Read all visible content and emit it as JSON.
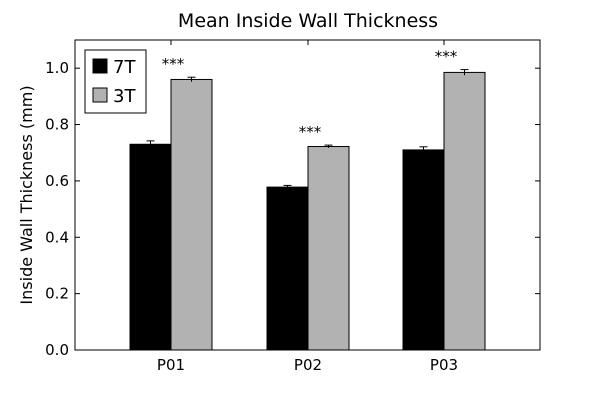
{
  "chart_data": {
    "type": "bar",
    "title": "Mean Inside Wall Thickness",
    "xlabel": "",
    "ylabel": "Inside Wall Thickness (mm)",
    "ylim": [
      0,
      1.1
    ],
    "yticks": [
      "0.0",
      "0.2",
      "0.4",
      "0.6",
      "0.8",
      "1.0"
    ],
    "ytick_values": [
      0,
      0.2,
      0.4,
      0.6,
      0.8,
      1.0
    ],
    "categories": [
      "P01",
      "P02",
      "P03"
    ],
    "series": [
      {
        "name": "7T",
        "color": "#000000",
        "values": [
          0.73,
          0.578,
          0.71
        ],
        "errors": [
          0.012,
          0.006,
          0.011
        ]
      },
      {
        "name": "3T",
        "color": "#b2b2b2",
        "values": [
          0.96,
          0.722,
          0.985
        ],
        "errors": [
          0.008,
          0.005,
          0.01
        ]
      }
    ],
    "annotations": [
      "***",
      "***",
      "***"
    ],
    "legend_position": "top-left",
    "grid": false
  }
}
